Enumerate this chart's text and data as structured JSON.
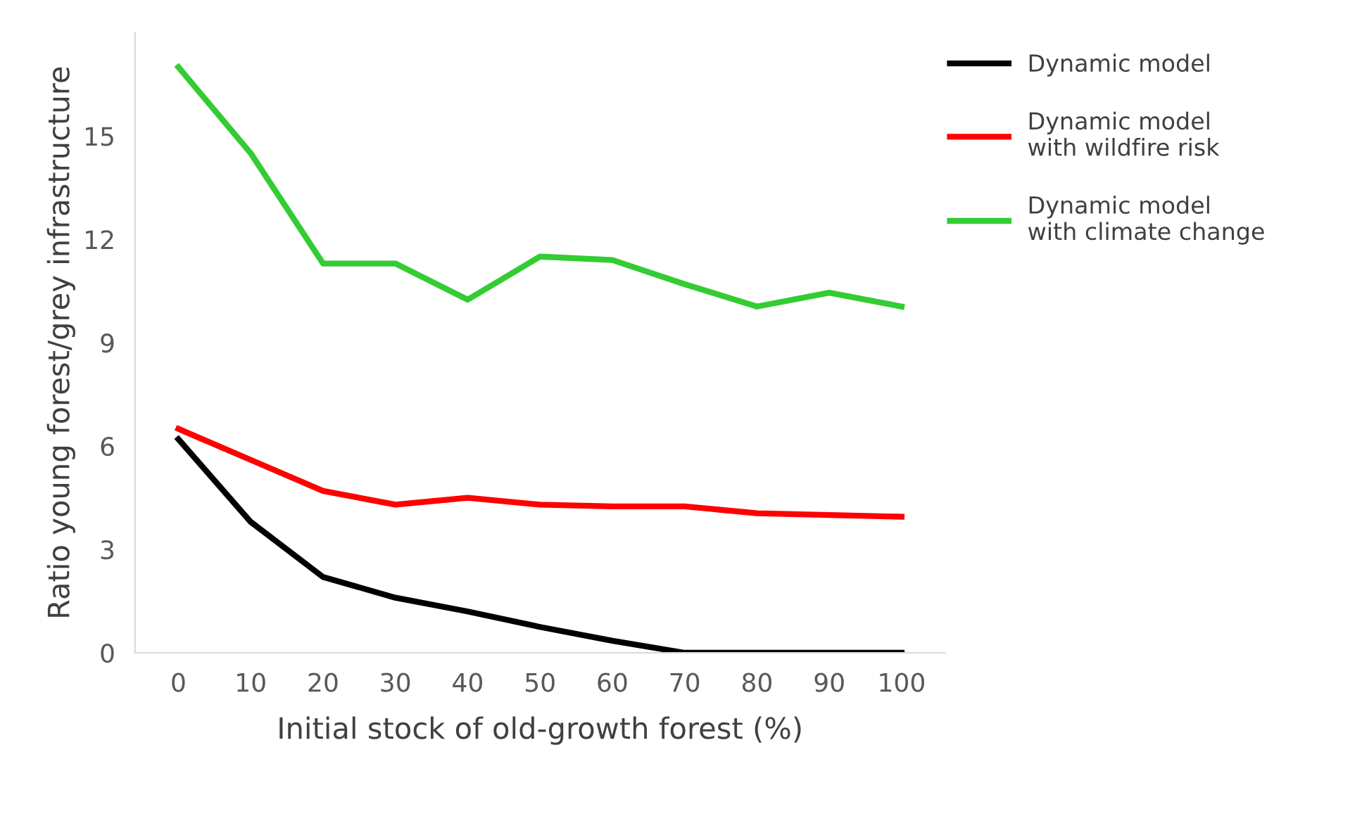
{
  "chart_data": {
    "type": "line",
    "xlabel": "Initial stock of old-growth forest (%)",
    "ylabel": "Ratio young forest/grey infrastructure",
    "categories": [
      "0",
      "10",
      "20",
      "30",
      "40",
      "50",
      "60",
      "70",
      "80",
      "90",
      "100"
    ],
    "series": [
      {
        "name": "Dynamic model",
        "color": "#000000",
        "values": [
          6.2,
          3.8,
          2.2,
          1.6,
          1.2,
          0.75,
          0.35,
          0,
          0,
          0,
          0
        ]
      },
      {
        "name": "Dynamic model\nwith wildfire risk",
        "color": "#ff0000",
        "values": [
          6.5,
          5.6,
          4.7,
          4.3,
          4.5,
          4.3,
          4.25,
          4.25,
          4.05,
          4.0,
          3.95
        ]
      },
      {
        "name": "Dynamic model\nwith climate change",
        "color": "#33cc33",
        "values": [
          17.0,
          14.5,
          11.3,
          11.3,
          10.25,
          11.5,
          11.4,
          10.7,
          10.05,
          10.45,
          10.05
        ]
      }
    ],
    "ylim": [
      0,
      18
    ],
    "yticks": [
      0,
      3,
      6,
      9,
      12,
      15
    ],
    "grid": false,
    "legend": "right",
    "marker": "none",
    "line_style": "solid"
  }
}
